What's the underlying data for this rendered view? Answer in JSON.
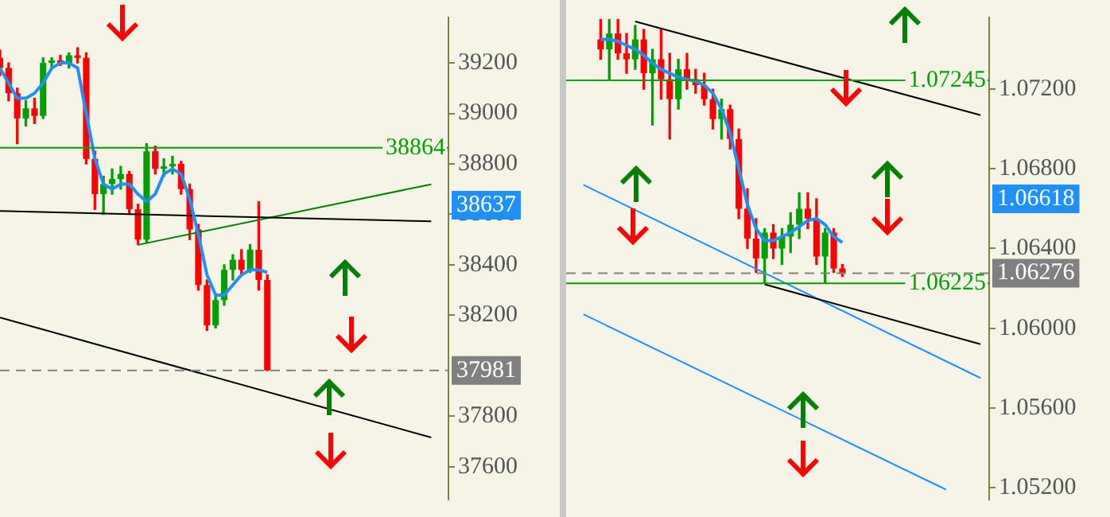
{
  "chart_data": [
    {
      "type": "candlestick",
      "categories": [
        null,
        null,
        null,
        null,
        null,
        null,
        null,
        null,
        null,
        null,
        null,
        null,
        null,
        null,
        null,
        null,
        null,
        null,
        null,
        null,
        null,
        null,
        null,
        null,
        null,
        null,
        null,
        null,
        null,
        null,
        null,
        null,
        null,
        null,
        null,
        null,
        null,
        null,
        null,
        null,
        null,
        null,
        null,
        null,
        null,
        null,
        null,
        null,
        null,
        null,
        null,
        null,
        null
      ],
      "ohlc": [
        [
          39220,
          39250,
          39150,
          39180
        ],
        [
          39180,
          39200,
          39050,
          39080
        ],
        [
          39080,
          39100,
          38880,
          38980
        ],
        [
          38980,
          39050,
          38950,
          39020
        ],
        [
          39020,
          39060,
          38960,
          38990
        ],
        [
          38990,
          39220,
          38980,
          39200
        ],
        [
          39200,
          39220,
          39180,
          39210
        ],
        [
          39210,
          39230,
          39190,
          39200
        ],
        [
          39200,
          39240,
          39180,
          39230
        ],
        [
          39230,
          39260,
          39200,
          39220
        ],
        [
          39220,
          39240,
          38800,
          38820
        ],
        [
          38820,
          38850,
          38620,
          38680
        ],
        [
          38680,
          38750,
          38600,
          38720
        ],
        [
          38720,
          38780,
          38680,
          38740
        ],
        [
          38740,
          38790,
          38700,
          38760
        ],
        [
          38760,
          38770,
          38600,
          38620
        ],
        [
          38620,
          38640,
          38480,
          38500
        ],
        [
          38500,
          38880,
          38490,
          38850
        ],
        [
          38850,
          38870,
          38760,
          38780
        ],
        [
          38780,
          38820,
          38750,
          38790
        ],
        [
          38790,
          38830,
          38760,
          38800
        ],
        [
          38800,
          38810,
          38680,
          38700
        ],
        [
          38700,
          38720,
          38500,
          38540
        ],
        [
          38540,
          38560,
          38300,
          38320
        ],
        [
          38320,
          38340,
          38140,
          38160
        ],
        [
          38160,
          38280,
          38150,
          38260
        ],
        [
          38260,
          38400,
          38240,
          38380
        ],
        [
          38380,
          38440,
          38340,
          38420
        ],
        [
          38420,
          38460,
          38360,
          38380
        ],
        [
          38380,
          38480,
          38370,
          38460
        ],
        [
          38460,
          38650,
          38300,
          38340
        ],
        [
          38340,
          38360,
          37981,
          37981
        ],
        null,
        null,
        null,
        null,
        null,
        null,
        null,
        null,
        null,
        null,
        null,
        null,
        null,
        null,
        null,
        null,
        null,
        null,
        null,
        null,
        null
      ],
      "series": [
        {
          "type": "line",
          "color": "#1e90ff",
          "values": [
            39180,
            39120,
            39060,
            39060,
            39080,
            39120,
            39180,
            39200,
            39200,
            39180,
            39000,
            38820,
            38720,
            38700,
            38720,
            38720,
            38680,
            38650,
            38680,
            38760,
            38780,
            38760,
            38660,
            38520,
            38360,
            38280,
            38280,
            38320,
            38360,
            38380,
            38380,
            38370,
            null,
            null,
            null,
            null,
            null,
            null,
            null,
            null,
            null,
            null,
            null,
            null,
            null,
            null,
            null,
            null,
            null,
            null,
            null,
            null,
            null
          ]
        },
        {
          "type": "line",
          "color": "#000000",
          "values": [
            38613,
            null,
            null,
            null,
            null,
            null,
            null,
            null,
            null,
            null,
            null,
            null,
            null,
            null,
            null,
            null,
            null,
            null,
            null,
            null,
            null,
            null,
            null,
            null,
            null,
            null,
            null,
            null,
            null,
            null,
            null,
            null,
            null,
            null,
            null,
            null,
            null,
            null,
            null,
            null,
            null,
            null,
            null,
            null,
            null,
            null,
            null,
            null,
            null,
            null,
            38572,
            null,
            null
          ]
        },
        {
          "type": "line",
          "color": "#000000",
          "values": [
            38191,
            null,
            null,
            null,
            null,
            null,
            null,
            null,
            null,
            null,
            null,
            null,
            null,
            null,
            null,
            null,
            null,
            null,
            null,
            null,
            null,
            null,
            null,
            null,
            null,
            null,
            null,
            null,
            null,
            null,
            null,
            null,
            null,
            null,
            null,
            null,
            null,
            null,
            null,
            null,
            null,
            null,
            null,
            null,
            null,
            null,
            null,
            null,
            null,
            null,
            37716,
            null,
            null
          ]
        },
        {
          "type": "line",
          "color": "#008000",
          "values": [
            null,
            null,
            null,
            null,
            null,
            null,
            null,
            null,
            null,
            null,
            null,
            null,
            null,
            null,
            null,
            null,
            38479,
            null,
            null,
            null,
            null,
            null,
            null,
            null,
            null,
            null,
            null,
            null,
            null,
            null,
            null,
            null,
            null,
            null,
            null,
            null,
            null,
            null,
            null,
            null,
            null,
            null,
            null,
            null,
            null,
            null,
            null,
            null,
            null,
            null,
            38719,
            null,
            null
          ]
        }
      ],
      "ylim": [
        37470,
        39380
      ],
      "yticks": [
        37600,
        37800,
        38200,
        38400,
        38600,
        38800,
        39000,
        39200
      ],
      "ref_lines": [
        {
          "axis": "y",
          "value": 38864,
          "label": "38864",
          "color": "#00a000"
        },
        {
          "axis": "y",
          "value": 37981,
          "label": "37981",
          "color": "#808080",
          "line_style": "dashed"
        }
      ],
      "annotations": [
        "38637"
      ],
      "tick_labels": "y",
      "grid": false,
      "legend": false,
      "marker": "none"
    },
    {
      "type": "candlestick",
      "categories": [
        null,
        null,
        null,
        null,
        null,
        null,
        null,
        null,
        null,
        null,
        null,
        null,
        null,
        null,
        null,
        null,
        null,
        null,
        null,
        null,
        null,
        null,
        null,
        null,
        null,
        null,
        null,
        null,
        null,
        null,
        null,
        null,
        null,
        null,
        null,
        null,
        null,
        null,
        null,
        null,
        null,
        null,
        null,
        null,
        null,
        null,
        null,
        null,
        null,
        null
      ],
      "ohlc": [
        null,
        null,
        null,
        null,
        [
          1.0745,
          1.0755,
          1.0735,
          1.074
        ],
        [
          1.074,
          1.0755,
          1.0725,
          1.0748
        ],
        [
          1.0748,
          1.0755,
          1.0735,
          1.0738
        ],
        [
          1.0738,
          1.0748,
          1.0728,
          1.0735
        ],
        [
          1.0735,
          1.0752,
          1.073,
          1.0745
        ],
        [
          1.0745,
          1.075,
          1.072,
          1.0728
        ],
        [
          1.0728,
          1.074,
          1.0702,
          1.0735
        ],
        [
          1.0735,
          1.075,
          1.0715,
          1.0725
        ],
        [
          1.0725,
          1.0738,
          1.0695,
          1.0715
        ],
        [
          1.0715,
          1.0735,
          1.071,
          1.073
        ],
        [
          1.073,
          1.0738,
          1.072,
          1.0725
        ],
        [
          1.0725,
          1.073,
          1.0718,
          1.0722
        ],
        [
          1.0722,
          1.0728,
          1.0712,
          1.0715
        ],
        [
          1.0715,
          1.072,
          1.07,
          1.0705
        ],
        [
          1.0705,
          1.0715,
          1.0695,
          1.071
        ],
        [
          1.071,
          1.0712,
          1.069,
          1.0695
        ],
        [
          1.0695,
          1.07,
          1.0655,
          1.066
        ],
        [
          1.066,
          1.067,
          1.064,
          1.0645
        ],
        [
          1.0645,
          1.0655,
          1.0628,
          1.0635
        ],
        [
          1.0635,
          1.065,
          1.06225,
          1.0648
        ],
        [
          1.0648,
          1.0652,
          1.0635,
          1.064
        ],
        [
          1.064,
          1.065,
          1.0632,
          1.0646
        ],
        [
          1.0646,
          1.0658,
          1.0638,
          1.0652
        ],
        [
          1.0652,
          1.0668,
          1.0645,
          1.066
        ],
        [
          1.066,
          1.0668,
          1.065,
          1.0655
        ],
        [
          1.0655,
          1.0665,
          1.0632,
          1.0636
        ],
        [
          1.0636,
          1.065,
          1.06225,
          1.0648
        ],
        [
          1.0648,
          1.065,
          1.0628,
          1.063
        ],
        [
          1.063,
          1.0632,
          1.0626,
          1.06276
        ],
        null,
        null,
        null,
        null,
        null,
        null,
        null,
        null,
        null,
        null,
        null,
        null,
        null,
        null,
        null,
        null,
        null
      ],
      "series": [
        {
          "type": "line",
          "color": "#1e90ff",
          "values": [
            null,
            null,
            null,
            null,
            1.0745,
            1.0745,
            1.0744,
            1.0742,
            1.074,
            1.0737,
            1.0733,
            1.073,
            1.0728,
            1.0726,
            1.0725,
            1.0724,
            1.0722,
            1.0718,
            1.071,
            1.0698,
            1.068,
            1.0662,
            1.065,
            1.0644,
            1.0644,
            1.0646,
            1.0648,
            1.0651,
            1.0654,
            1.0655,
            1.0652,
            1.0646,
            1.0643,
            null,
            null,
            null,
            null,
            null,
            null,
            null,
            null,
            null,
            null,
            null,
            null,
            null,
            null,
            null,
            null,
            null
          ]
        },
        {
          "type": "line",
          "color": "#000000",
          "values": [
            null,
            null,
            null,
            null,
            null,
            null,
            null,
            null,
            1.0754,
            null,
            null,
            null,
            null,
            null,
            null,
            null,
            null,
            null,
            null,
            null,
            null,
            null,
            null,
            null,
            null,
            null,
            null,
            null,
            null,
            null,
            null,
            null,
            null,
            null,
            null,
            null,
            null,
            null,
            null,
            null,
            null,
            null,
            null,
            null,
            null,
            null,
            null,
            null,
            1.0707,
            null
          ]
        },
        {
          "type": "line",
          "color": "#000000",
          "values": [
            null,
            null,
            null,
            null,
            null,
            null,
            null,
            null,
            null,
            null,
            null,
            null,
            null,
            null,
            null,
            null,
            null,
            null,
            null,
            null,
            null,
            null,
            null,
            1.0622,
            null,
            null,
            null,
            null,
            null,
            null,
            null,
            null,
            null,
            null,
            null,
            null,
            null,
            null,
            null,
            null,
            null,
            null,
            null,
            null,
            null,
            null,
            null,
            null,
            1.0592,
            null
          ]
        },
        {
          "type": "line",
          "color": "#1e90ff",
          "values": [
            null,
            null,
            1.0607,
            null,
            null,
            null,
            null,
            null,
            null,
            null,
            null,
            null,
            null,
            null,
            null,
            null,
            null,
            null,
            null,
            null,
            null,
            null,
            null,
            null,
            null,
            null,
            null,
            null,
            null,
            null,
            null,
            null,
            null,
            null,
            null,
            null,
            null,
            null,
            null,
            null,
            null,
            null,
            null,
            null,
            1.0519,
            null,
            null,
            null,
            null,
            null
          ]
        },
        {
          "type": "line",
          "color": "#1e90ff",
          "values": [
            null,
            null,
            1.0672,
            null,
            null,
            null,
            null,
            null,
            null,
            null,
            null,
            null,
            null,
            null,
            null,
            null,
            null,
            null,
            null,
            null,
            null,
            null,
            null,
            null,
            null,
            null,
            null,
            null,
            null,
            null,
            null,
            null,
            null,
            null,
            null,
            null,
            null,
            null,
            null,
            null,
            null,
            null,
            null,
            null,
            null,
            null,
            null,
            null,
            1.0575,
            null
          ]
        }
      ],
      "ylim": [
        1.0514,
        1.0756
      ],
      "yticks": [
        {
          "value": 1.052,
          "label": "1.05200"
        },
        {
          "value": 1.056,
          "label": "1.05600"
        },
        {
          "value": 1.06,
          "label": "1.06000"
        },
        {
          "value": 1.064,
          "label": "1.06400"
        },
        {
          "value": 1.068,
          "label": "1.06800"
        },
        {
          "value": 1.072,
          "label": "1.07200"
        }
      ],
      "ref_lines": [
        {
          "axis": "y",
          "value": 1.07245,
          "label": "1.07245",
          "color": "#00a000"
        },
        {
          "axis": "y",
          "value": 1.06225,
          "label": "1.06225",
          "color": "#00a000"
        },
        {
          "axis": "y",
          "value": 1.06276,
          "label": "1.06276",
          "color": "#808080",
          "line_style": "dashed"
        }
      ],
      "annotations": [
        "1.06618"
      ],
      "tick_labels": "y",
      "grid": false,
      "legend": false,
      "marker": "none"
    }
  ]
}
